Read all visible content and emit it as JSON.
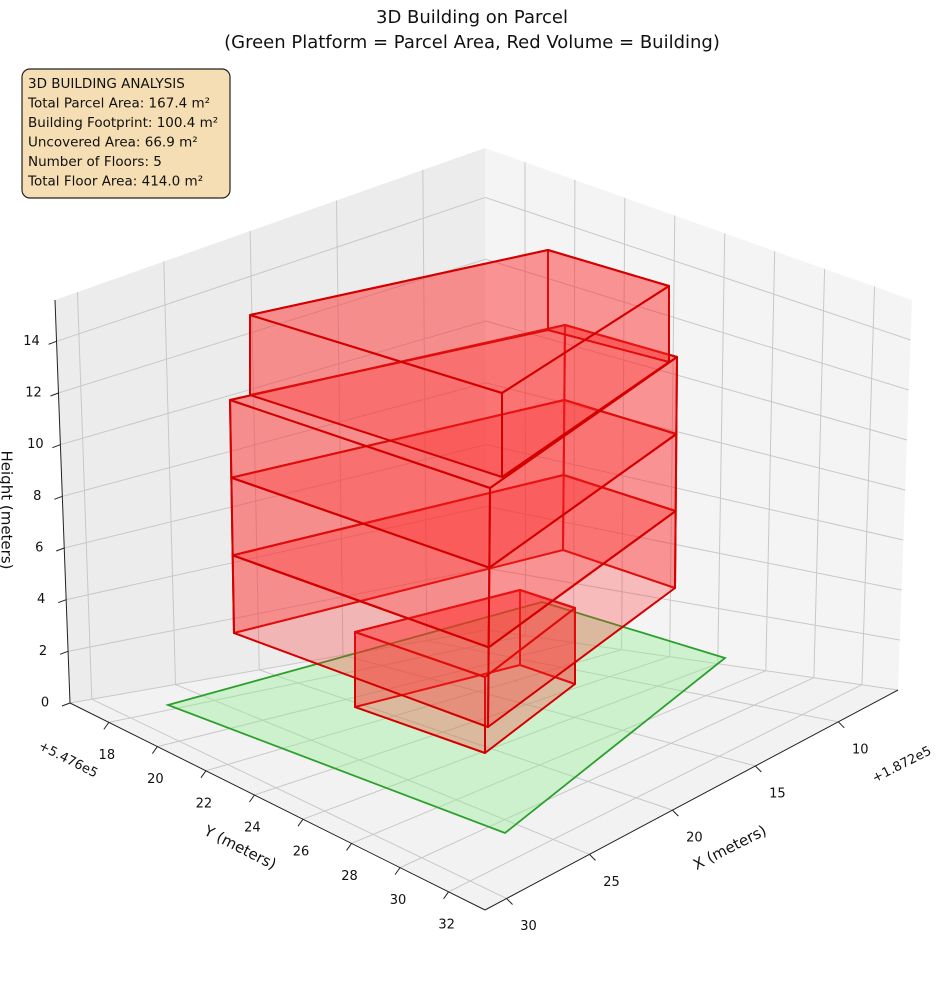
{
  "chart_data": {
    "type": "3d",
    "title": "3D Building on Parcel",
    "subtitle": "(Green Platform = Parcel Area, Red Volume = Building)",
    "annotation": [
      "3D BUILDING ANALYSIS",
      "Total Parcel Area: 167.4 m²",
      "Building Footprint: 100.4 m²",
      "Uncovered Area: 66.9 m²",
      "Number of Floors: 5",
      "Total Floor Area: 414.0 m²"
    ],
    "xlabel": "X (meters)",
    "ylabel": "Y (meters)",
    "zlabel": "Height (meters)",
    "x_offset": "+1.872e5",
    "y_offset": "+5.476e5",
    "xlim": [
      6.4,
      31.3
    ],
    "ylim": [
      16.4,
      33.5
    ],
    "zlim": [
      0,
      15.6
    ],
    "xticks": [
      10,
      15,
      20,
      25,
      30
    ],
    "yticks": [
      18,
      20,
      22,
      24,
      26,
      28,
      30,
      32
    ],
    "zticks": [
      0,
      2,
      4,
      6,
      8,
      10,
      12,
      14
    ],
    "grid": true
  }
}
